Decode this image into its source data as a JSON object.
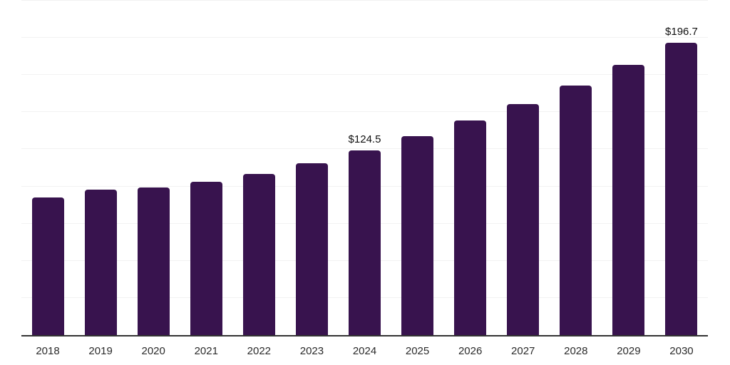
{
  "chart_data": {
    "type": "bar",
    "title": "",
    "xlabel": "",
    "ylabel": "",
    "categories": [
      "2018",
      "2019",
      "2020",
      "2021",
      "2022",
      "2023",
      "2024",
      "2025",
      "2026",
      "2027",
      "2028",
      "2029",
      "2030"
    ],
    "values": [
      92.8,
      97.9,
      99.2,
      103.0,
      108.4,
      115.6,
      124.5,
      133.9,
      144.4,
      155.5,
      167.8,
      181.9,
      196.7
    ],
    "point_labels": [
      "",
      "",
      "",
      "",
      "",
      "",
      "$124.5",
      "",
      "",
      "",
      "",
      "",
      "$196.7"
    ],
    "ylim": [
      0,
      225
    ],
    "grid_step": 25,
    "grid": "horizontal-only",
    "legend": "none",
    "y_tick_labels": "hidden",
    "colors": {
      "bar": "#38134e",
      "axis": "#333333",
      "gridline": "#f2f2f2",
      "tick_label": "#2b2b2b",
      "data_label": "#111111",
      "background": "#ffffff"
    }
  }
}
